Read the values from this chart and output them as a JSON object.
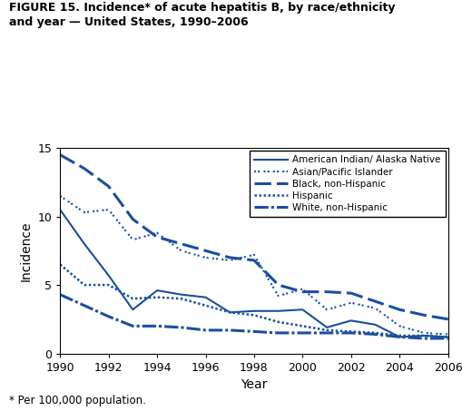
{
  "title_line1": "FIGURE 15. Incidence* of acute hepatitis B, by race/ethnicity",
  "title_line2": "and year — United States, 1990–2006",
  "footnote": "* Per 100,000 population.",
  "xlabel": "Year",
  "ylabel": "Incidence",
  "color": "#1a4f9c",
  "years": [
    1990,
    1991,
    1992,
    1993,
    1994,
    1995,
    1996,
    1997,
    1998,
    1999,
    2000,
    2001,
    2002,
    2003,
    2004,
    2005,
    2006
  ],
  "american_indian": [
    10.5,
    8.0,
    5.7,
    3.2,
    4.6,
    4.3,
    4.1,
    3.0,
    3.1,
    3.1,
    3.2,
    1.9,
    2.4,
    2.1,
    1.2,
    1.3,
    1.2
  ],
  "asian_pacific": [
    11.5,
    10.3,
    10.5,
    8.3,
    8.8,
    7.5,
    7.0,
    6.8,
    7.2,
    4.2,
    4.7,
    3.2,
    3.7,
    3.3,
    2.0,
    1.5,
    1.4
  ],
  "black": [
    14.5,
    13.5,
    12.2,
    9.8,
    8.5,
    8.0,
    7.5,
    7.0,
    6.8,
    5.0,
    4.5,
    4.5,
    4.4,
    3.8,
    3.2,
    2.8,
    2.5
  ],
  "hispanic": [
    6.5,
    5.0,
    5.0,
    4.0,
    4.1,
    4.0,
    3.5,
    3.0,
    2.8,
    2.3,
    2.0,
    1.7,
    1.6,
    1.5,
    1.3,
    1.3,
    1.2
  ],
  "white": [
    4.3,
    3.5,
    2.7,
    2.0,
    2.0,
    1.9,
    1.7,
    1.7,
    1.6,
    1.5,
    1.5,
    1.5,
    1.5,
    1.4,
    1.2,
    1.1,
    1.1
  ],
  "ylim": [
    0,
    15
  ],
  "yticks": [
    0,
    5,
    10,
    15
  ],
  "xticks": [
    1990,
    1992,
    1994,
    1996,
    1998,
    2000,
    2002,
    2004,
    2006
  ]
}
